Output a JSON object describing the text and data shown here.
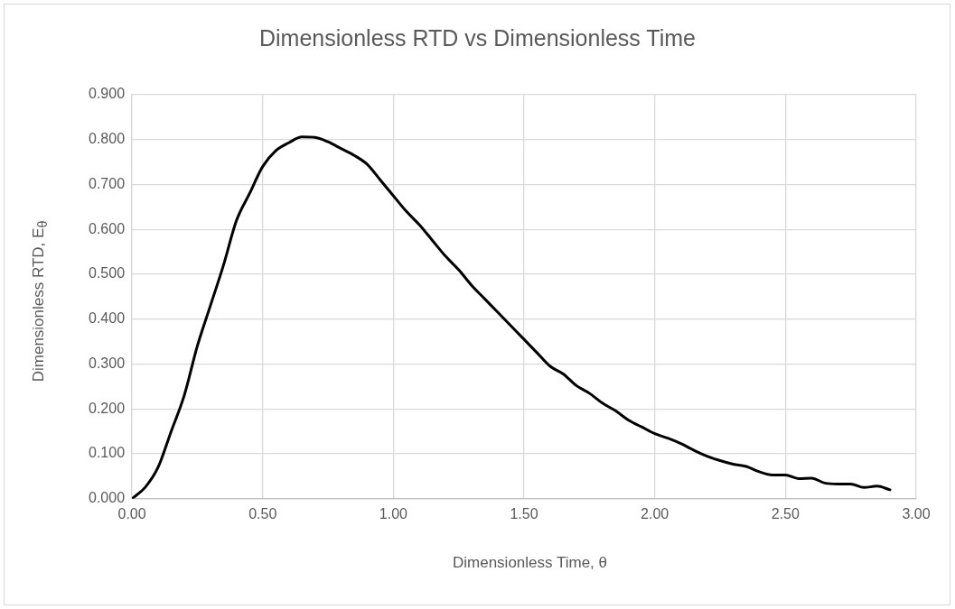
{
  "chart_data": {
    "type": "line",
    "title": "Dimensionless RTD vs Dimensionless Time",
    "xlabel": "Dimensionless Time, θ",
    "ylabel": "Dimensionless RTD, E$_{θ}$",
    "x": [
      0,
      0.05,
      0.1,
      0.15,
      0.2,
      0.25,
      0.3,
      0.35,
      0.4,
      0.45,
      0.5,
      0.55,
      0.6,
      0.65,
      0.7,
      0.75,
      0.8,
      0.85,
      0.9,
      0.95,
      1.0,
      1.05,
      1.1,
      1.15,
      1.2,
      1.25,
      1.3,
      1.35,
      1.4,
      1.45,
      1.5,
      1.55,
      1.6,
      1.65,
      1.7,
      1.75,
      1.8,
      1.85,
      1.9,
      1.95,
      2.0,
      2.05,
      2.1,
      2.15,
      2.2,
      2.25,
      2.3,
      2.35,
      2.4,
      2.45,
      2.5,
      2.55,
      2.6,
      2.65,
      2.7,
      2.75,
      2.8,
      2.85,
      2.9
    ],
    "series": [
      {
        "color": "#000000",
        "values": [
          0,
          0.025,
          0.07,
          0.15,
          0.23,
          0.34,
          0.43,
          0.52,
          0.62,
          0.68,
          0.74,
          0.775,
          0.793,
          0.806,
          0.805,
          0.795,
          0.78,
          0.765,
          0.745,
          0.71,
          0.675,
          0.64,
          0.61,
          0.575,
          0.54,
          0.51,
          0.475,
          0.445,
          0.415,
          0.385,
          0.355,
          0.325,
          0.295,
          0.278,
          0.252,
          0.235,
          0.213,
          0.196,
          0.175,
          0.16,
          0.145,
          0.135,
          0.123,
          0.108,
          0.095,
          0.085,
          0.077,
          0.072,
          0.06,
          0.053,
          0.053,
          0.045,
          0.046,
          0.035,
          0.033,
          0.033,
          0.025,
          0.028,
          0.02
        ]
      }
    ],
    "xlim": [
      0,
      3
    ],
    "xticks": [
      {
        "value": 0,
        "label": "0.00"
      },
      {
        "value": 0.5,
        "label": "0.50"
      },
      {
        "value": 1,
        "label": "1.00"
      },
      {
        "value": 1.5,
        "label": "1.50"
      },
      {
        "value": 2,
        "label": "2.00"
      },
      {
        "value": 2.5,
        "label": "2.50"
      },
      {
        "value": 3,
        "label": "3.00"
      }
    ],
    "ylim": [
      0,
      0.9
    ],
    "yticks": [
      {
        "value": 0,
        "label": "0.000"
      },
      {
        "value": 0.1,
        "label": "0.100"
      },
      {
        "value": 0.2,
        "label": "0.200"
      },
      {
        "value": 0.3,
        "label": "0.300"
      },
      {
        "value": 0.4,
        "label": "0.400"
      },
      {
        "value": 0.5,
        "label": "0.500"
      },
      {
        "value": 0.6,
        "label": "0.600"
      },
      {
        "value": 0.7,
        "label": "0.700"
      },
      {
        "value": 0.8,
        "label": "0.800"
      },
      {
        "value": 0.9,
        "label": "0.900"
      }
    ],
    "grid": true,
    "legend": false,
    "marker": "none",
    "line_style": "solid"
  }
}
